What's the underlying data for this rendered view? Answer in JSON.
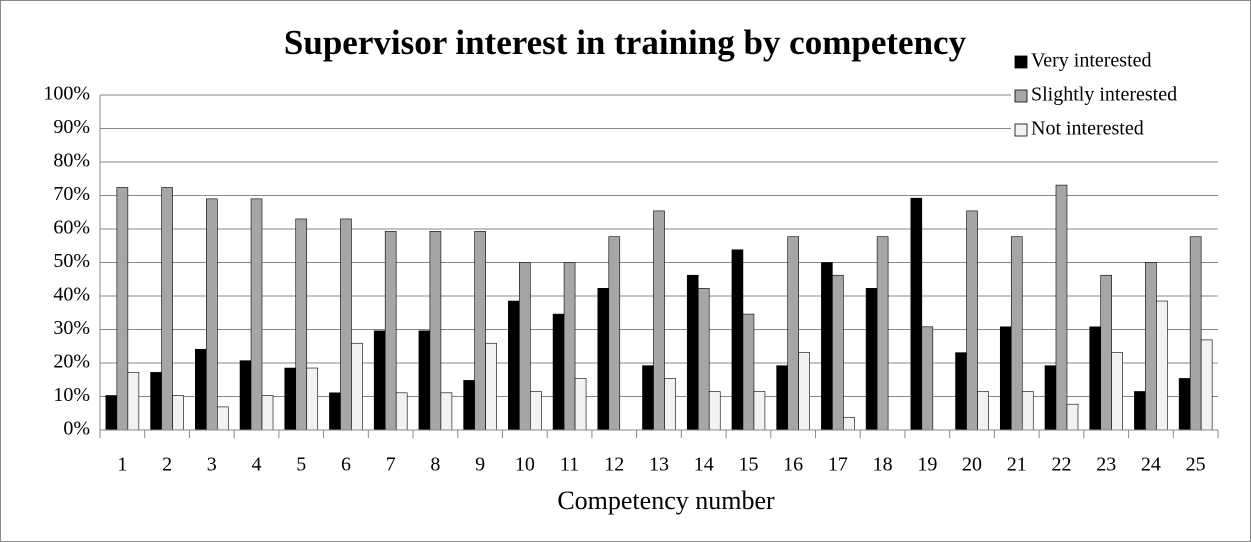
{
  "chart_data": {
    "type": "bar",
    "title": "Supervisor interest in training by competency",
    "x_label": "Competency number",
    "categories": [
      "1",
      "2",
      "3",
      "4",
      "5",
      "6",
      "7",
      "8",
      "9",
      "10",
      "11",
      "12",
      "13",
      "14",
      "15",
      "16",
      "17",
      "18",
      "19",
      "20",
      "21",
      "22",
      "23",
      "24",
      "25"
    ],
    "series": [
      {
        "name": "Very interested",
        "color": "#000000",
        "values": [
          10.3,
          17.2,
          24.1,
          20.7,
          18.5,
          11.1,
          29.6,
          29.6,
          14.8,
          38.5,
          34.6,
          42.3,
          19.2,
          46.2,
          53.8,
          19.2,
          50,
          42.3,
          69.2,
          23.1,
          30.8,
          19.2,
          30.8,
          11.5,
          15.4
        ]
      },
      {
        "name": "Slightly interested",
        "color": "#a6a6a6",
        "values": [
          72.4,
          72.4,
          69.0,
          69.0,
          63.0,
          63.0,
          59.3,
          59.3,
          59.3,
          50,
          50,
          57.7,
          65.4,
          42.3,
          34.6,
          57.7,
          46.2,
          57.7,
          30.8,
          65.4,
          57.7,
          73.1,
          46.2,
          50,
          57.7
        ]
      },
      {
        "name": "Not interested",
        "color": "#f2f2f2",
        "values": [
          17.2,
          10.3,
          6.9,
          10.3,
          18.5,
          25.9,
          11.1,
          11.1,
          25.9,
          11.5,
          15.4,
          0,
          15.4,
          11.5,
          11.5,
          23.1,
          3.8,
          0,
          0,
          11.5,
          11.5,
          7.7,
          23.1,
          38.5,
          26.9
        ]
      }
    ],
    "ylim": [
      0,
      100
    ],
    "yticks": [
      {
        "value": 0,
        "label": "0%"
      },
      {
        "value": 10,
        "label": "10%"
      },
      {
        "value": 20,
        "label": "20%"
      },
      {
        "value": 30,
        "label": "30%"
      },
      {
        "value": 40,
        "label": "40%"
      },
      {
        "value": 50,
        "label": "50%"
      },
      {
        "value": 60,
        "label": "60%"
      },
      {
        "value": 70,
        "label": "70%"
      },
      {
        "value": 80,
        "label": "80%"
      },
      {
        "value": 90,
        "label": "90%"
      },
      {
        "value": 100,
        "label": "100%"
      }
    ],
    "grid": true,
    "legend": "upper right"
  }
}
